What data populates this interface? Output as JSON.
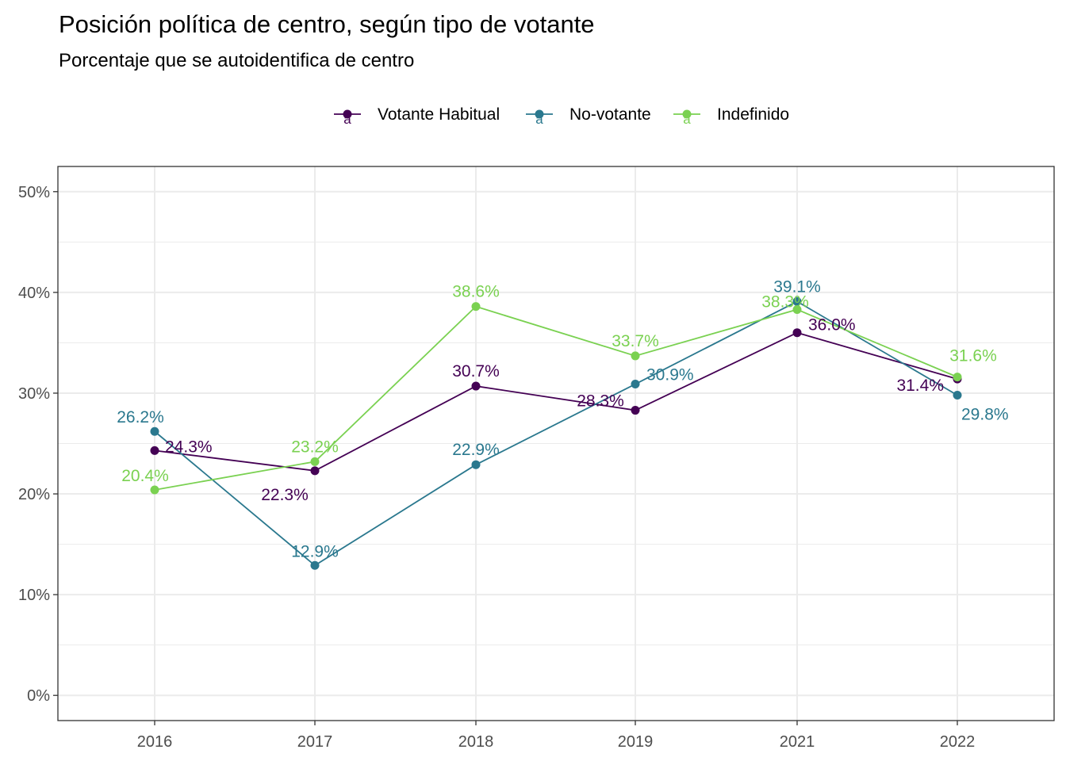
{
  "chart_data": {
    "type": "line",
    "title": "Posición política de centro, según tipo de votante",
    "subtitle": "Porcentaje que se autoidentifica de centro",
    "xlabel": "",
    "ylabel": "",
    "categories": [
      "2016",
      "2017",
      "2018",
      "2019",
      "2021",
      "2022"
    ],
    "y_ticks": [
      {
        "value": 0,
        "label": "0%"
      },
      {
        "value": 10,
        "label": "10%"
      },
      {
        "value": 20,
        "label": "20%"
      },
      {
        "value": 30,
        "label": "30%"
      },
      {
        "value": 40,
        "label": "40%"
      },
      {
        "value": 50,
        "label": "50%"
      }
    ],
    "ylim": [
      -2.5,
      52.5
    ],
    "grid": true,
    "legend_position": "top",
    "legend_glyph": "a",
    "series": [
      {
        "name": "Votante Habitual",
        "color": "#440154",
        "values": [
          24.3,
          22.3,
          30.7,
          28.3,
          36.0,
          31.4
        ],
        "labels": [
          "24.3%",
          "22.3%",
          "30.7%",
          "28.3%",
          "36.0%",
          "31.4%"
        ]
      },
      {
        "name": "No-votante",
        "color": "#2a788e",
        "values": [
          26.2,
          12.9,
          22.9,
          30.9,
          39.1,
          29.8
        ],
        "labels": [
          "26.2%",
          "12.9%",
          "22.9%",
          "30.9%",
          "39.1%",
          "29.8%"
        ]
      },
      {
        "name": "Indefinido",
        "color": "#7ad151",
        "values": [
          20.4,
          23.2,
          38.6,
          33.7,
          38.3,
          31.6
        ],
        "labels": [
          "20.4%",
          "23.2%",
          "38.6%",
          "33.7%",
          "38.3%",
          "31.6%"
        ]
      }
    ]
  }
}
